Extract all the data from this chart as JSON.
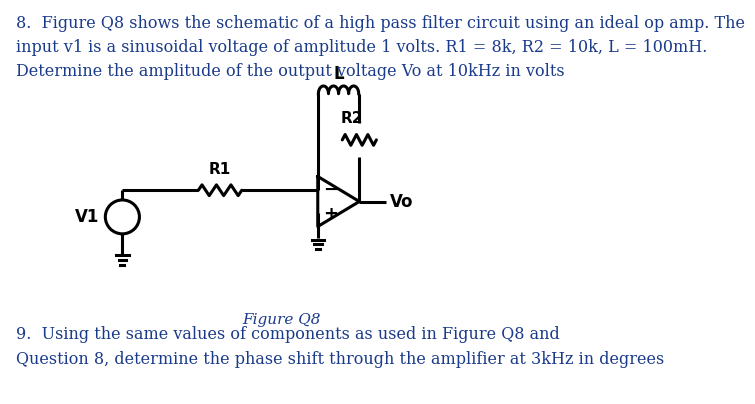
{
  "title_text": "8.  Figure Q8 shows the schematic of a high pass filter circuit using an ideal op amp. The\ninput v1 is a sinusoidal voltage of amplitude 1 volts. R1 = 8k, R2 = 10k, L = 100mH.\nDetermine the amplitude of the output voltage Vo at 10kHz in volts",
  "caption": "Figure Q8",
  "question9": "9.  Using the same values of components as used in Figure Q8 and\nQuestion 8, determine the phase shift through the amplifier at 3kHz in degrees",
  "text_color": "#1a3a8a",
  "bg_color": "#ffffff",
  "line_color": "#000000",
  "fontsize_title": 11.5,
  "fontsize_caption": 11,
  "fontsize_q9": 11.5,
  "lw": 2.2
}
